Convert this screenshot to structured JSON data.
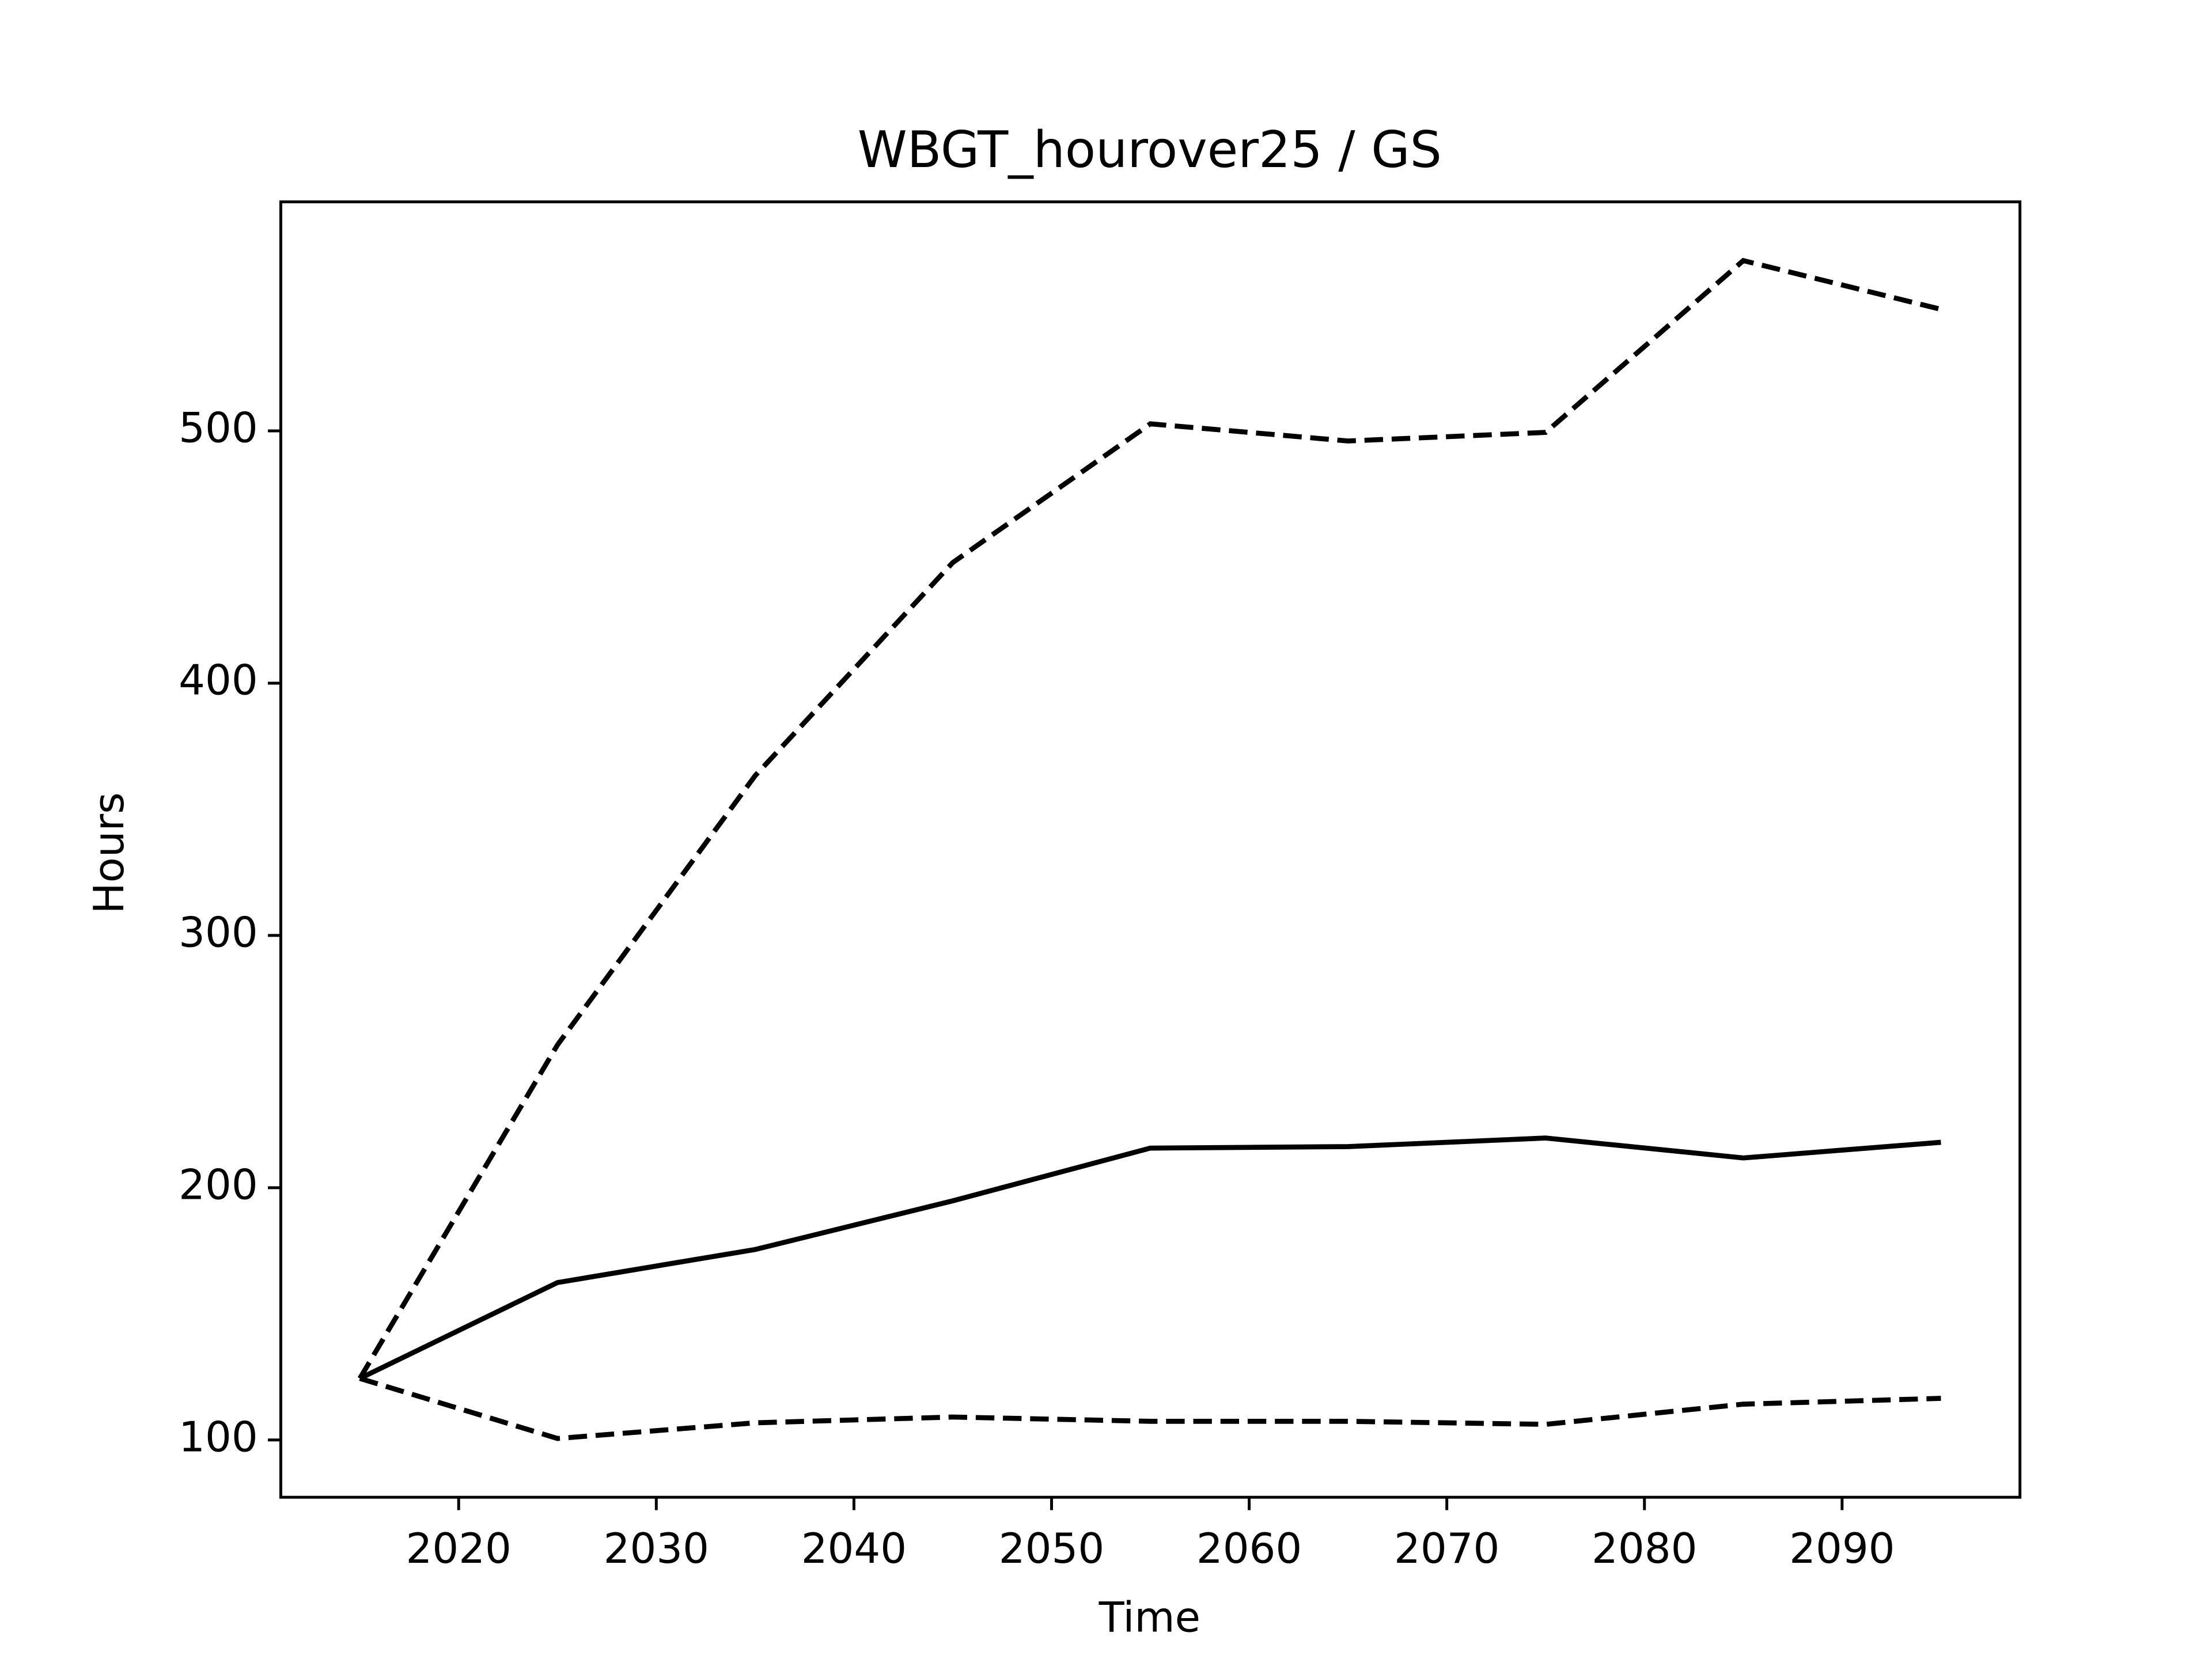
{
  "chart_data": {
    "type": "line",
    "title": "WBGT_hourover25 / GS",
    "x_label": "Time",
    "y_label": "Hours",
    "x": [
      2015,
      2025,
      2035,
      2045,
      2055,
      2065,
      2075,
      2085,
      2095
    ],
    "series": [
      {
        "color": "#000000",
        "dash": true,
        "values": [
          124.4,
          256.6,
          363.3,
          447.8,
          502.8,
          496.0,
          499.4,
          567.5,
          548.2
        ]
      },
      {
        "color": "#000000",
        "dash": false,
        "values": [
          124.4,
          162.4,
          175.5,
          194.8,
          215.7,
          216.3,
          219.7,
          211.8,
          218.0
        ]
      },
      {
        "color": "#000000",
        "dash": true,
        "values": [
          124.4,
          100.6,
          106.8,
          109.1,
          107.4,
          107.4,
          106.2,
          114.2,
          116.5
        ]
      }
    ],
    "xlim": [
      2011,
      2099
    ],
    "ylim": [
      77.3,
      590.8
    ],
    "xticks": [
      2020,
      2030,
      2040,
      2050,
      2060,
      2070,
      2080,
      2090
    ],
    "yticks": [
      100,
      200,
      300,
      400,
      500
    ],
    "grid": false
  }
}
